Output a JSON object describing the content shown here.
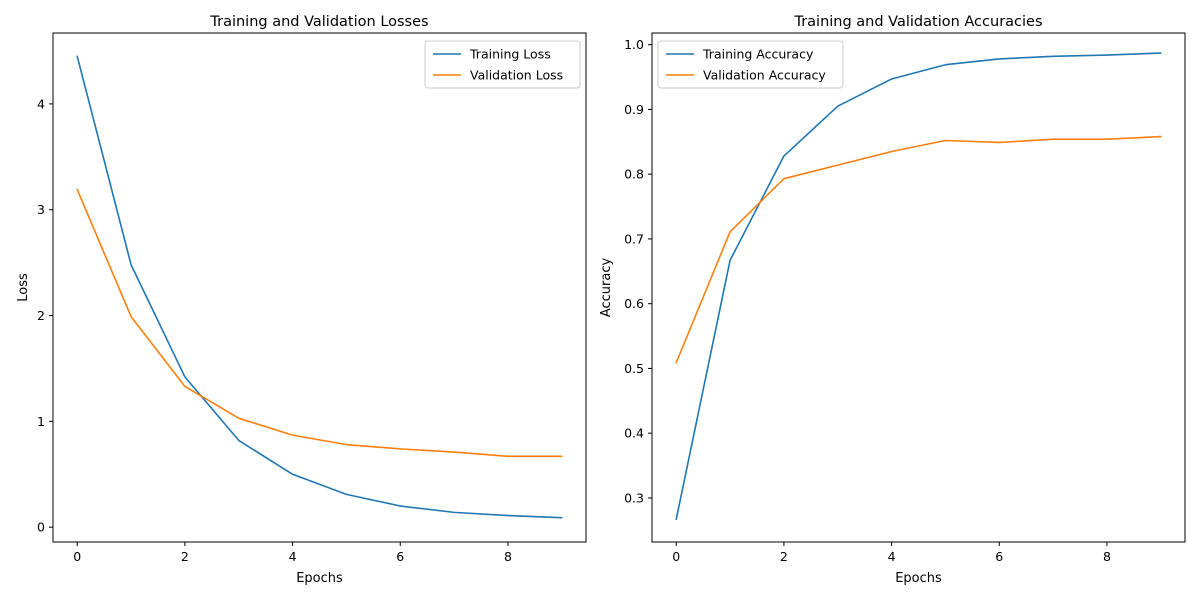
{
  "chart_data": [
    {
      "type": "line",
      "title": "Training and Validation Losses",
      "xlabel": "Epochs",
      "ylabel": "Loss",
      "xlim": [
        -0.45,
        9.45
      ],
      "ylim": [
        -0.14,
        4.67
      ],
      "xticks": [
        0,
        2,
        4,
        6,
        8
      ],
      "yticks": [
        0,
        1,
        2,
        3,
        4
      ],
      "xtick_labels": [
        "0",
        "2",
        "4",
        "6",
        "8"
      ],
      "ytick_labels": [
        "0",
        "1",
        "2",
        "3",
        "4"
      ],
      "grid": false,
      "legend_position": "top-right",
      "x": [
        0,
        1,
        2,
        3,
        4,
        5,
        6,
        7,
        8,
        9
      ],
      "series": [
        {
          "name": "Training Loss",
          "color": "#1f77b4",
          "values": [
            4.45,
            2.48,
            1.42,
            0.82,
            0.5,
            0.31,
            0.2,
            0.14,
            0.11,
            0.09
          ]
        },
        {
          "name": "Validation Loss",
          "color": "#ff7f0e",
          "values": [
            3.19,
            1.99,
            1.33,
            1.03,
            0.87,
            0.78,
            0.74,
            0.71,
            0.67,
            0.67
          ]
        }
      ]
    },
    {
      "type": "line",
      "title": "Training and Validation Accuracies",
      "xlabel": "Epochs",
      "ylabel": "Accuracy",
      "xlim": [
        -0.45,
        9.45
      ],
      "ylim": [
        0.232,
        1.018
      ],
      "xticks": [
        0,
        2,
        4,
        6,
        8
      ],
      "yticks": [
        0.3,
        0.4,
        0.5,
        0.6,
        0.7,
        0.8,
        0.9,
        1.0
      ],
      "xtick_labels": [
        "0",
        "2",
        "4",
        "6",
        "8"
      ],
      "ytick_labels": [
        "0.3",
        "0.4",
        "0.5",
        "0.6",
        "0.7",
        "0.8",
        "0.9",
        "1.0"
      ],
      "grid": false,
      "legend_position": "top-left",
      "x": [
        0,
        1,
        2,
        3,
        4,
        5,
        6,
        7,
        8,
        9
      ],
      "series": [
        {
          "name": "Training Accuracy",
          "color": "#1f77b4",
          "values": [
            0.267,
            0.667,
            0.828,
            0.905,
            0.947,
            0.969,
            0.978,
            0.982,
            0.984,
            0.987
          ]
        },
        {
          "name": "Validation Accuracy",
          "color": "#ff7f0e",
          "values": [
            0.509,
            0.711,
            0.793,
            0.814,
            0.835,
            0.852,
            0.849,
            0.854,
            0.854,
            0.858
          ]
        }
      ]
    }
  ]
}
